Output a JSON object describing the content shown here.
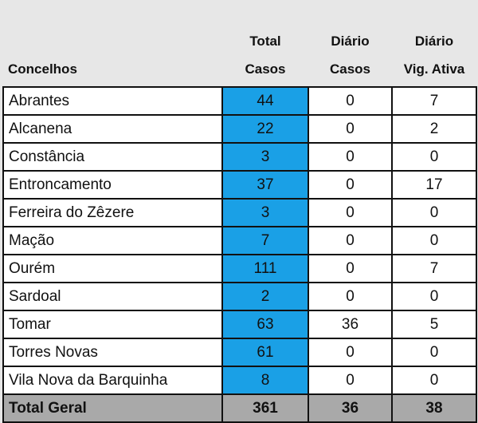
{
  "headers": {
    "col0": "Concelhos",
    "col1": [
      "Total",
      "Casos"
    ],
    "col2": [
      "Diário",
      "Casos"
    ],
    "col3": [
      "Diário",
      "Vig. Ativa"
    ]
  },
  "rows": [
    {
      "name": "Abrantes",
      "total": "44",
      "diario_casos": "0",
      "diario_vig": "7"
    },
    {
      "name": "Alcanena",
      "total": "22",
      "diario_casos": "0",
      "diario_vig": "2"
    },
    {
      "name": "Constância",
      "total": "3",
      "diario_casos": "0",
      "diario_vig": "0"
    },
    {
      "name": "Entroncamento",
      "total": "37",
      "diario_casos": "0",
      "diario_vig": "17"
    },
    {
      "name": "Ferreira do Zêzere",
      "total": "3",
      "diario_casos": "0",
      "diario_vig": "0"
    },
    {
      "name": "Mação",
      "total": "7",
      "diario_casos": "0",
      "diario_vig": "0"
    },
    {
      "name": "Ourém",
      "total": "111",
      "diario_casos": "0",
      "diario_vig": "7"
    },
    {
      "name": "Sardoal",
      "total": "2",
      "diario_casos": "0",
      "diario_vig": "0"
    },
    {
      "name": "Tomar",
      "total": "63",
      "diario_casos": "36",
      "diario_vig": "5"
    },
    {
      "name": "Torres Novas",
      "total": "61",
      "diario_casos": "0",
      "diario_vig": "0"
    },
    {
      "name": "Vila Nova da Barquinha",
      "total": "8",
      "diario_casos": "0",
      "diario_vig": "0"
    }
  ],
  "footer": {
    "name": "Total Geral",
    "total": "361",
    "diario_casos": "36",
    "diario_vig": "38"
  },
  "colors": {
    "total_column": "#1aa0e6",
    "footer_bg": "#a9a9a9",
    "page_bg": "#e7e7e7"
  }
}
